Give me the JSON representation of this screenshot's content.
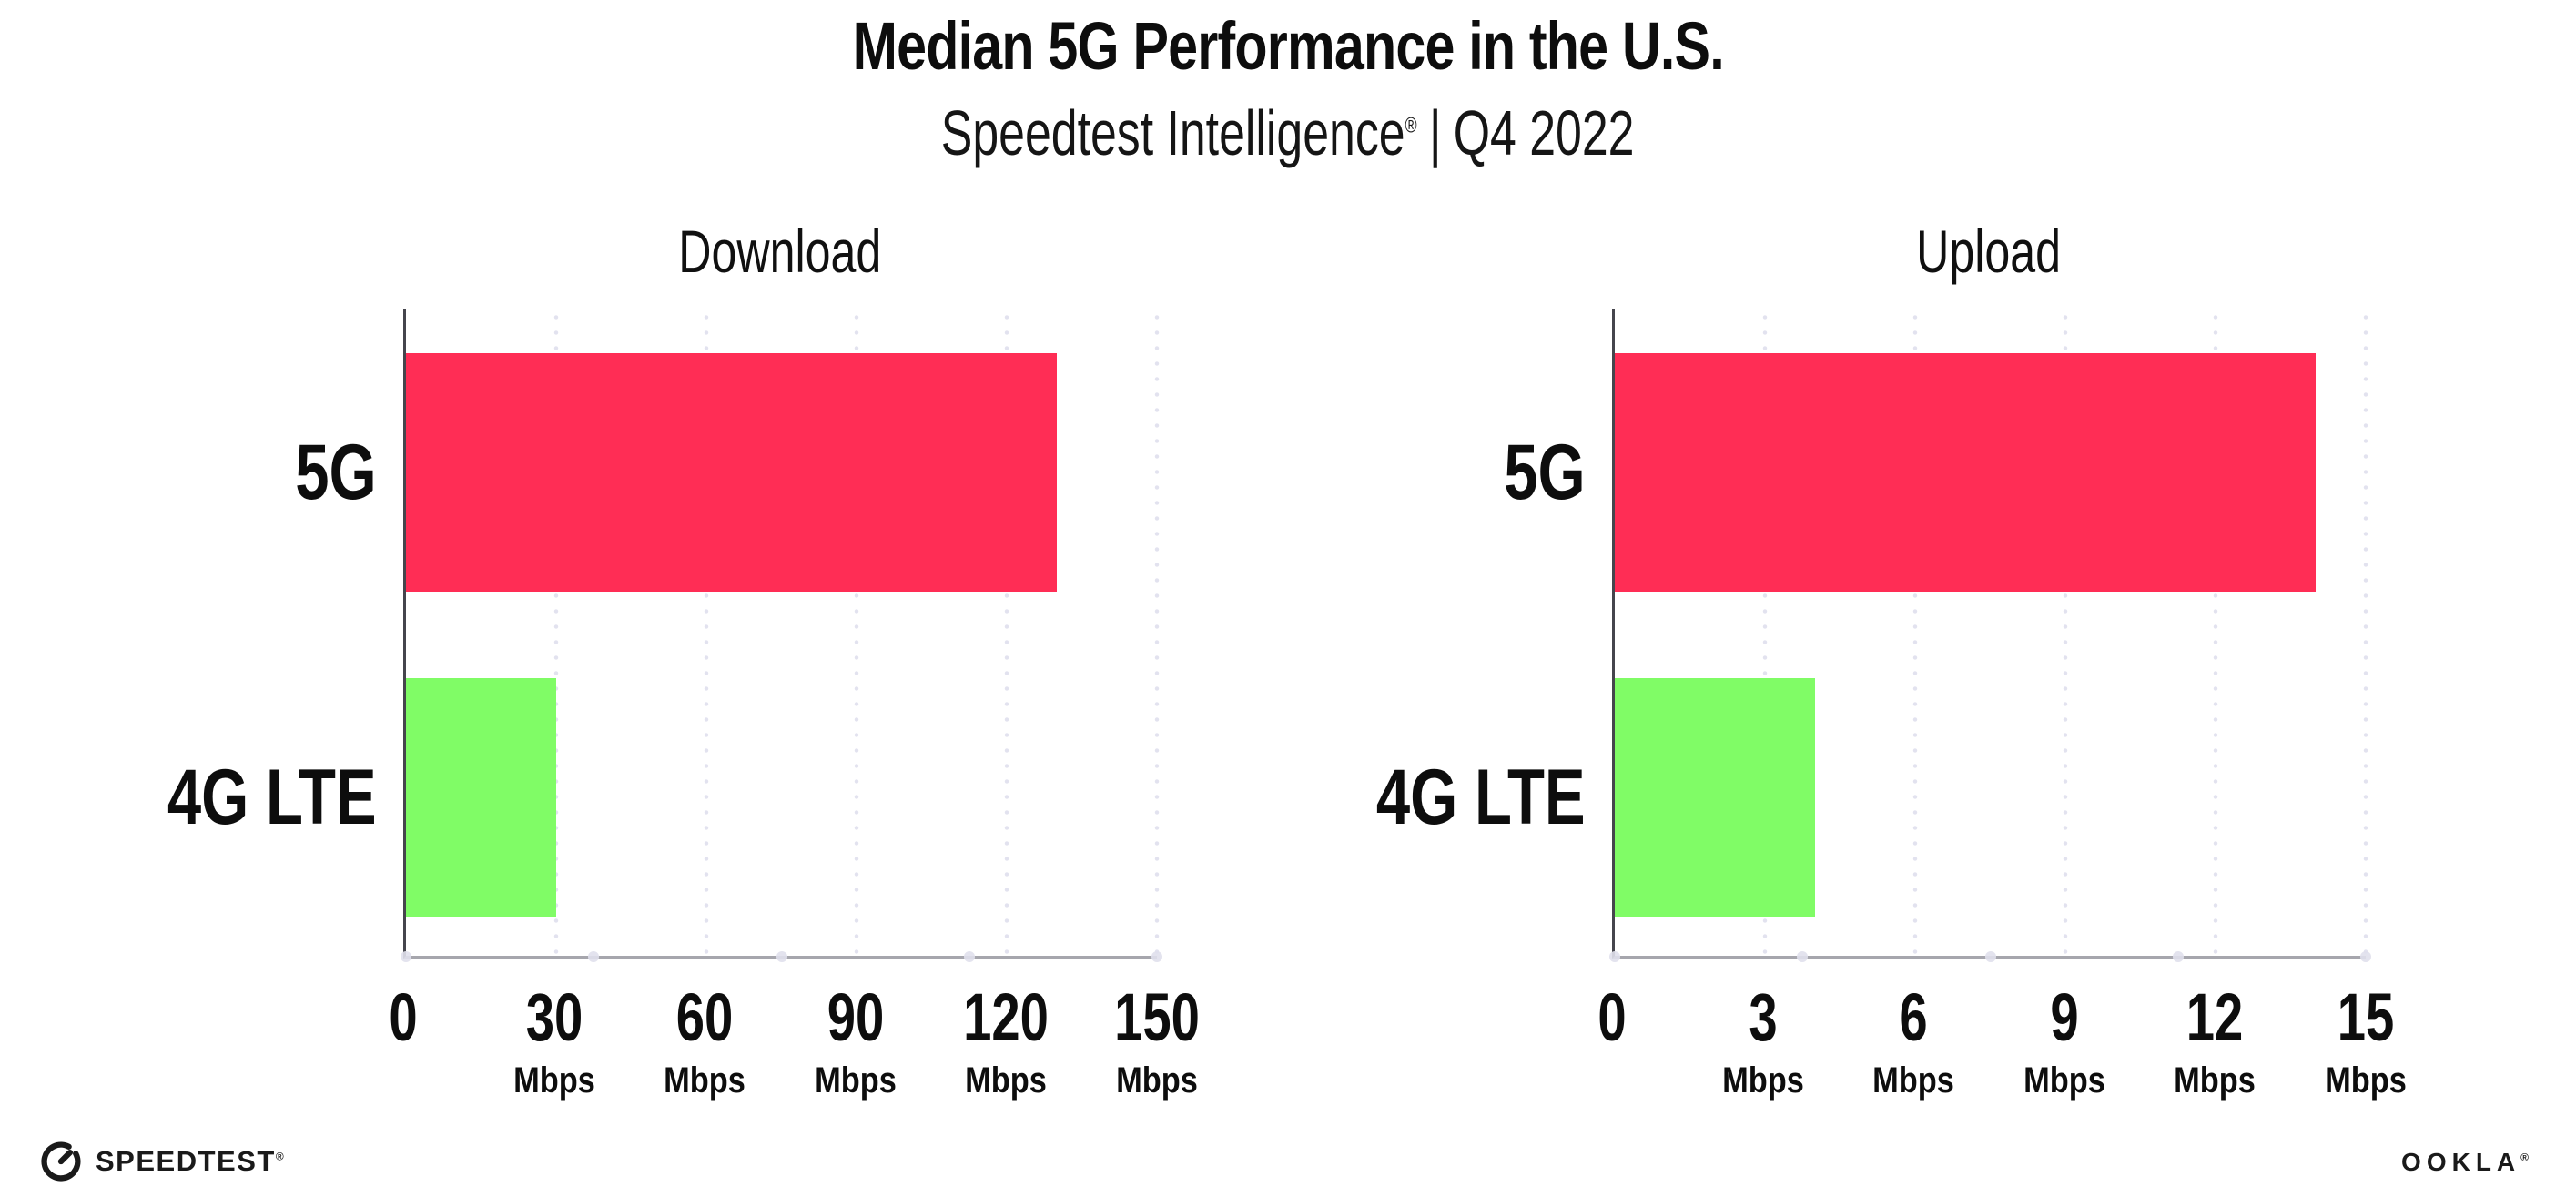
{
  "header": {
    "title": "Median 5G Performance in the U.S.",
    "subtitle": {
      "brand": "Speedtest Intelligence",
      "registered": "®",
      "separator": "|",
      "period": "Q4 2022"
    }
  },
  "chart_data": [
    {
      "type": "bar",
      "orientation": "horizontal",
      "title": "Download",
      "categories": [
        "5G",
        "4G LTE"
      ],
      "values": [
        130,
        30
      ],
      "unit": "Mbps",
      "xlim": [
        0,
        150
      ],
      "xticks": [
        0,
        30,
        60,
        90,
        120,
        150
      ],
      "bar_colors": [
        "#ff2d55",
        "#80fc66"
      ],
      "grid": "vertical-dotted",
      "legend_position": "none"
    },
    {
      "type": "bar",
      "orientation": "horizontal",
      "title": "Upload",
      "categories": [
        "5G",
        "4G LTE"
      ],
      "values": [
        14,
        4
      ],
      "unit": "Mbps",
      "xlim": [
        0,
        15
      ],
      "xticks": [
        0,
        3,
        6,
        9,
        12,
        15
      ],
      "bar_colors": [
        "#ff2d55",
        "#80fc66"
      ],
      "grid": "vertical-dotted",
      "legend_position": "none"
    }
  ],
  "footer": {
    "speedtest": {
      "text": "SPEEDTEST",
      "registered": "®"
    },
    "ookla": {
      "text": "OOKLA",
      "registered": "®"
    }
  },
  "colors": {
    "bar_5g": "#ff2d55",
    "bar_4g_lte": "#80fc66",
    "gridline": "#e2e2ef",
    "x_axis_line": "#a6a6ad",
    "y_axis_line": "#45454d",
    "text": "#0d0d0d",
    "background": "#ffffff"
  }
}
